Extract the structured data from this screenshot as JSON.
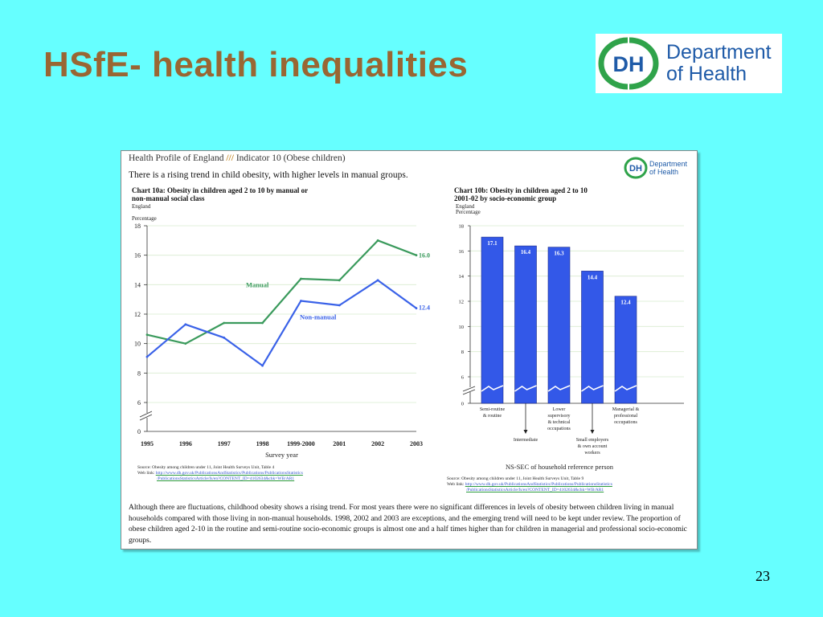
{
  "slide": {
    "title": "HSfE- health inequalities",
    "page_number": "23"
  },
  "logo": {
    "initials": "DH",
    "line1": "Department",
    "line2": "of Health",
    "color": "#1f5ba8",
    "swoosh_color": "#2fa34a"
  },
  "document": {
    "header_prefix": "Health Profile of England",
    "header_slashes": "///",
    "header_suffix": "Indicator 10 (Obese children)",
    "subtitle": "There is a rising trend in child obesity, with higher levels in manual groups.",
    "body": "Although there are fluctuations, childhood obesity shows a rising trend. For most years there were no significant differences in levels of obesity between children living in manual households compared with those living in non-manual households. 1998, 2002 and 2003 are exceptions, and the emerging trend will need to be kept under review. The proportion of obese children aged 2-10 in the routine and semi-routine socio-economic groups is almost one and a half times higher than for children in managerial and professional socio-economic groups."
  },
  "chart_data": [
    {
      "type": "line",
      "title_line1": "Chart 10a: Obesity in children aged 2 to 10 by manual or",
      "title_line2": "non-manual social class",
      "region": "England",
      "ylabel": "Percentage",
      "xlabel": "Survey year",
      "categories": [
        "1995",
        "1996",
        "1997",
        "1998",
        "1999-2000",
        "2001",
        "2002",
        "2003"
      ],
      "series": [
        {
          "name": "Manual",
          "values": [
            10.6,
            10.0,
            11.4,
            11.4,
            14.4,
            14.3,
            17.0,
            16.0
          ],
          "color": "#3a9a5c",
          "end_label": "16.0"
        },
        {
          "name": "Non-manual",
          "values": [
            9.1,
            11.3,
            10.4,
            8.5,
            12.9,
            12.6,
            14.3,
            12.4
          ],
          "color": "#3a62e8",
          "end_label": "12.4"
        }
      ],
      "yticks": [
        0,
        6,
        8,
        10,
        12,
        14,
        16,
        18
      ],
      "ylim": [
        0,
        18
      ],
      "axis_break": true,
      "grid": true,
      "source_line1": "Source: Obesity among children under 11, Joint Health Surveys Unit, Table 4",
      "source_line2_prefix": "Web link:",
      "source_link1": "http://www.dh.gov.uk/PublicationsAndStatistics/Publications/PublicationsStatistics",
      "source_link2": "/PublicationsStatisticsArticle/fs/en?CONTENT_ID=4102634&chk=WB/AR1"
    },
    {
      "type": "bar",
      "title_line1": "Chart 10b: Obesity in children aged 2 to 10",
      "title_line2": "2001-02 by socio-economic group",
      "region": "England",
      "ylabel": "Percentage",
      "xlabel": "NS-SEC of household reference person",
      "categories": [
        "Semi-routine & routine",
        "Intermediate",
        "Lower supervisory & technical occupations",
        "Small employers & own account workers",
        "Managerial & professional occupations"
      ],
      "values": [
        17.1,
        16.4,
        16.3,
        14.4,
        12.4
      ],
      "value_labels": [
        "17.1",
        "16.4",
        "16.3",
        "14.4",
        "12.4"
      ],
      "bar_color": "#3358e8",
      "yticks": [
        0,
        6,
        8,
        10,
        12,
        14,
        16,
        18
      ],
      "ylim": [
        0,
        18
      ],
      "axis_break": true,
      "grid": true,
      "labels_above": [
        [
          "Semi-routine",
          "& routine"
        ],
        [],
        [
          "Lower",
          "supervisory",
          "& technical",
          "occupations"
        ],
        [],
        [
          "Managerial &",
          "professional",
          "occupations"
        ]
      ],
      "labels_below": [
        [],
        [
          "Intermediate"
        ],
        [],
        [
          "Small employers",
          "& own account",
          "workers"
        ],
        []
      ],
      "source_line1": "Source: Obesity among children under 11, Joint Health Surveys Unit, Table 9",
      "source_line2_prefix": "Web link:",
      "source_link1": "http://www.dh.gov.uk/PublicationsAndStatistics/Publications/PublicationsStatistics",
      "source_link2": "/PublicationsStatisticsArticle/fs/en?CONTENT_ID=4102634&chk=WB/AR1"
    }
  ]
}
